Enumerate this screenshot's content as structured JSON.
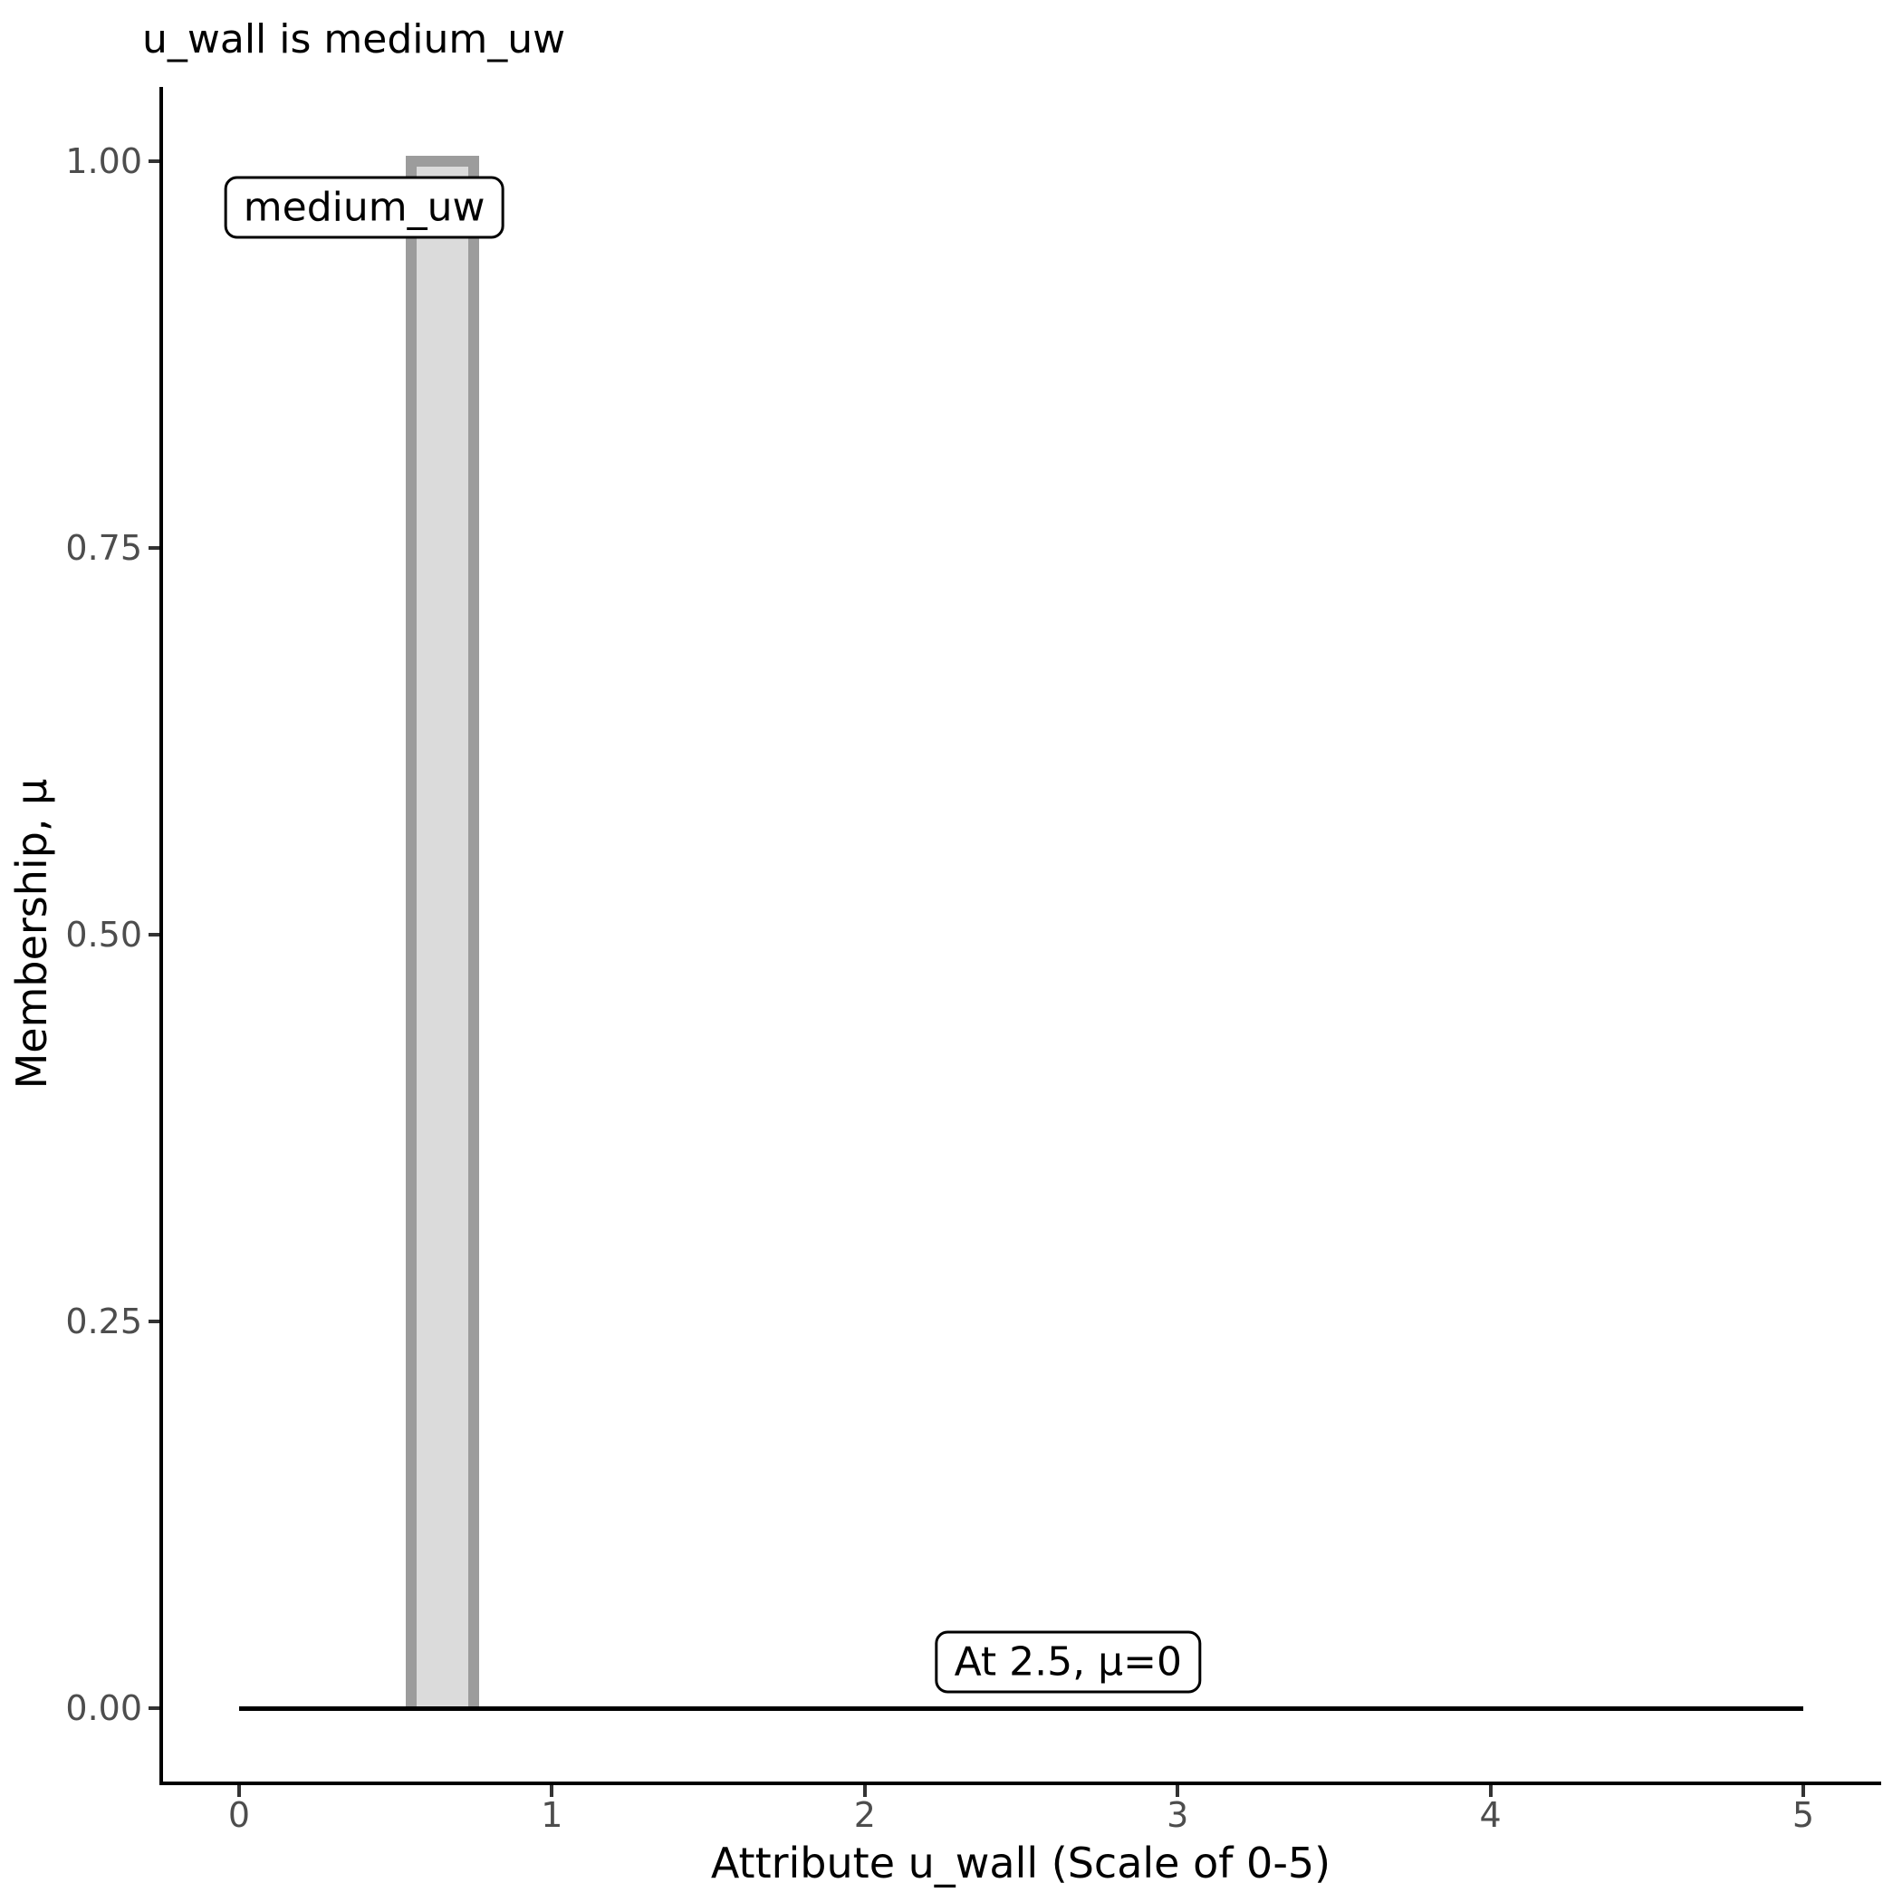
{
  "title": "u_wall is medium_uw",
  "chart_data": {
    "type": "area",
    "title": "u_wall is medium_uw",
    "xlabel": "Attribute u_wall (Scale of 0-5)",
    "ylabel": "Membership, μ",
    "xlim": [
      0,
      5
    ],
    "ylim": [
      0,
      1
    ],
    "grid": false,
    "legend": false,
    "x_ticks": [
      0,
      1,
      2,
      3,
      4,
      5
    ],
    "y_ticks": [
      "0.00",
      "0.25",
      "0.50",
      "0.75",
      "1.00"
    ],
    "y_tick_values": [
      0,
      0.25,
      0.5,
      0.75,
      1
    ],
    "series": [
      {
        "name": "medium_uw",
        "kind": "membership-rectangle",
        "x_start": 0.55,
        "x_end": 0.75,
        "mu_max": 1.0,
        "fill": "#DBDBDB",
        "stroke": "#9C9C9C"
      },
      {
        "name": "zero-membership-baseline",
        "kind": "line",
        "x": [
          0,
          5
        ],
        "mu": [
          0,
          0
        ],
        "stroke": "#000000"
      }
    ],
    "annotations": [
      {
        "label": "medium_uw",
        "x": 0.4,
        "mu": 0.97
      },
      {
        "label": "At 2.5, μ=0",
        "x": 2.65,
        "mu": 0.03
      }
    ]
  },
  "colors": {
    "background": "#FFFFFF",
    "axis_line": "#000000",
    "tick_mark": "#333333",
    "tick_label": "#4D4D4D",
    "bar_fill": "#DBDBDB",
    "bar_stroke": "#9C9C9C",
    "annotation_border": "#000000"
  }
}
